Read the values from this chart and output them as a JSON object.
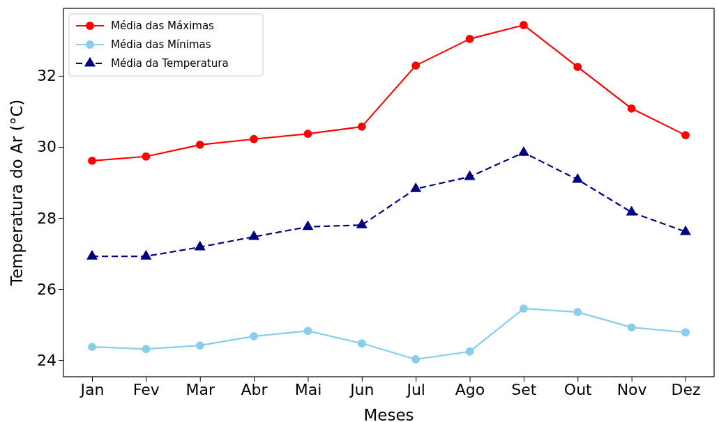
{
  "chart_data": {
    "type": "line",
    "xlabel": "Meses",
    "ylabel": "Temperatura do Ar (°C)",
    "categories": [
      "Jan",
      "Fev",
      "Mar",
      "Abr",
      "Mai",
      "Jun",
      "Jul",
      "Ago",
      "Set",
      "Out",
      "Nov",
      "Dez"
    ],
    "series": [
      {
        "name": "Média das Máximas",
        "color": "#ff0000",
        "marker": "circle",
        "line_style": "solid",
        "values": [
          29.61,
          29.73,
          30.06,
          30.22,
          30.37,
          30.57,
          32.29,
          33.04,
          33.43,
          32.25,
          31.08,
          30.33
        ]
      },
      {
        "name": "Média das Mínimas",
        "color": "#87ceeb",
        "marker": "circle",
        "line_style": "solid",
        "values": [
          24.37,
          24.31,
          24.41,
          24.67,
          24.82,
          24.47,
          24.02,
          24.24,
          25.45,
          25.35,
          24.92,
          24.78
        ]
      },
      {
        "name": "Média da Temperatura",
        "color": "#000080",
        "marker": "triangle",
        "line_style": "dashed",
        "values": [
          26.92,
          26.92,
          27.18,
          27.47,
          27.75,
          27.8,
          28.82,
          29.16,
          29.84,
          29.08,
          28.16,
          27.61
        ]
      }
    ],
    "ylim": [
      23.53,
      33.9
    ],
    "yticks": [
      24,
      26,
      28,
      30,
      32
    ],
    "grid": false,
    "legend": "top left"
  }
}
